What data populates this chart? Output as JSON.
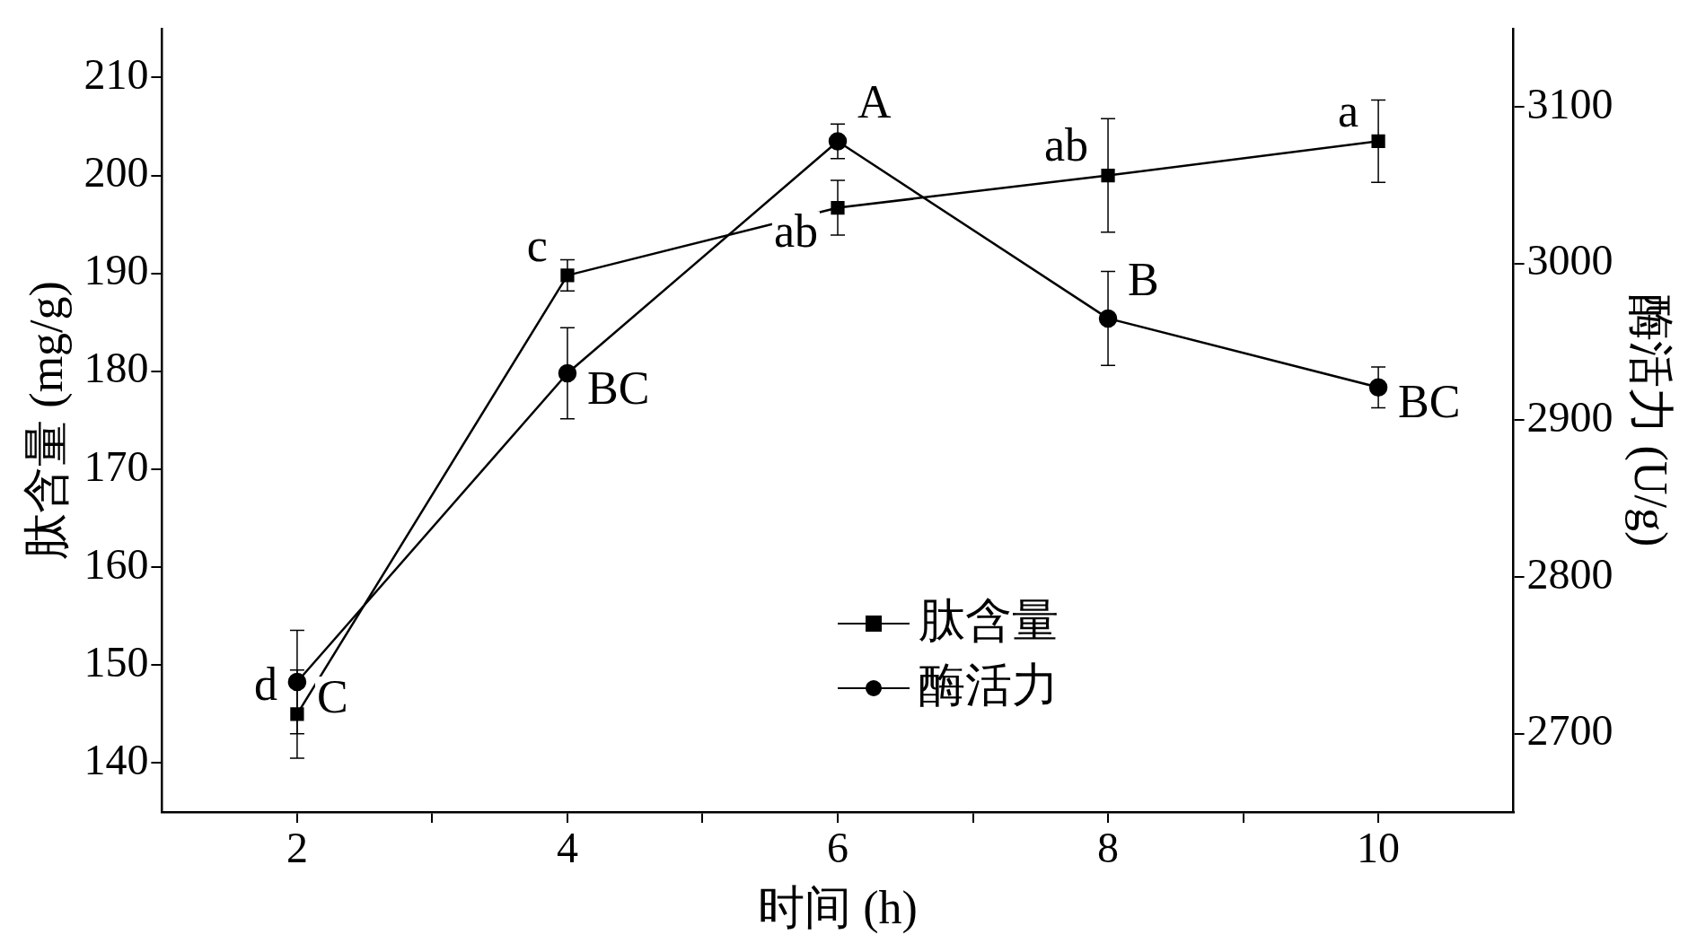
{
  "chart_data": {
    "type": "line",
    "xlabel": "时间 (h)",
    "ylabel": "肽含量 (mg/g)",
    "y2label": "酶活力 (U/g)",
    "x": [
      2,
      4,
      6,
      8,
      10
    ],
    "series": [
      {
        "name": "肽含量",
        "color": "#000000",
        "marker": "square",
        "values": [
          145,
          189.8,
          196.7,
          200,
          203.5
        ],
        "errors": [
          4.5,
          1.6,
          2.8,
          5.8,
          4.2
        ],
        "value_labels": [
          "d",
          "c",
          "ab",
          "ab",
          "a"
        ]
      },
      {
        "name": "酶活力",
        "color": "#000000",
        "marker": "circle",
        "axis": "y2",
        "values": [
          2733,
          2930,
          3078,
          2965,
          2921
        ],
        "errors": [
          33,
          29,
          11,
          30,
          13
        ],
        "value_labels": [
          "C",
          "BC",
          "A",
          "B",
          "BC"
        ]
      }
    ],
    "xlim": [
      1,
      11
    ],
    "xticks": [
      2,
      {
        "value": 3,
        "label": null
      },
      4,
      {
        "value": 5,
        "label": null
      },
      6,
      {
        "value": 7,
        "label": null
      },
      8,
      {
        "value": 9,
        "label": null
      },
      10
    ],
    "ylim": [
      135,
      215
    ],
    "yticks": [
      140,
      150,
      160,
      170,
      180,
      190,
      200,
      210
    ],
    "y2lim": [
      2650,
      3150
    ],
    "y2ticks": [
      2700,
      2800,
      2900,
      3000,
      3100
    ],
    "grid": false,
    "legend": "bottom",
    "line_style": "solid"
  }
}
